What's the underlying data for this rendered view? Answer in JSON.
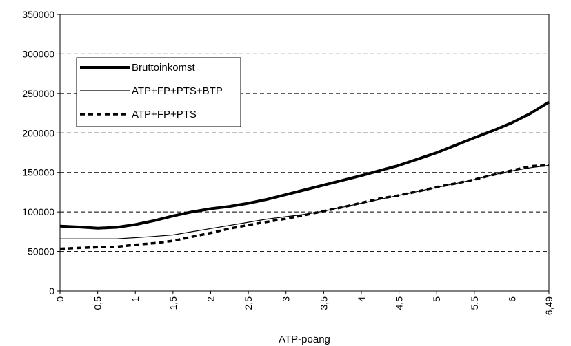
{
  "chart_data": {
    "type": "line",
    "title": "",
    "xlabel": "ATP-poäng",
    "ylabel": "",
    "xlim": [
      0,
      6.49
    ],
    "ylim": [
      0,
      350000
    ],
    "grid": "horizontal-dashed",
    "legend_position": "top-left",
    "x_ticks": [
      0,
      0.5,
      1,
      1.5,
      2,
      2.5,
      3,
      3.5,
      4,
      4.5,
      5,
      5.5,
      6,
      6.49
    ],
    "x_tick_labels": [
      "0",
      "0,5",
      "1",
      "1,5",
      "2",
      "2,5",
      "3",
      "3,5",
      "4",
      "4,5",
      "5",
      "5,5",
      "6",
      "6,49"
    ],
    "y_ticks": [
      0,
      50000,
      100000,
      150000,
      200000,
      250000,
      300000,
      350000
    ],
    "y_tick_labels": [
      "0",
      "50000",
      "100000",
      "150000",
      "200000",
      "250000",
      "300000",
      "350000"
    ],
    "x": [
      0,
      0.25,
      0.5,
      0.75,
      1,
      1.25,
      1.5,
      1.75,
      2,
      2.25,
      2.5,
      2.75,
      3,
      3.25,
      3.5,
      3.75,
      4,
      4.25,
      4.5,
      4.75,
      5,
      5.25,
      5.5,
      5.75,
      6,
      6.25,
      6.49
    ],
    "series": [
      {
        "name": "Bruttoinkomst",
        "style": "thick",
        "color": "#000000",
        "values": [
          82000,
          81000,
          79500,
          80500,
          84000,
          89000,
          95000,
          100000,
          104000,
          107000,
          111000,
          116000,
          122000,
          128000,
          134000,
          140000,
          146000,
          152500,
          159000,
          167000,
          175000,
          184500,
          194000,
          203000,
          213000,
          225000,
          239000
        ]
      },
      {
        "name": "ATP+FP+PTS+BTP",
        "style": "thin",
        "color": "#000000",
        "values": [
          66000,
          66000,
          66000,
          66000,
          67500,
          69000,
          71000,
          75000,
          79000,
          83000,
          87000,
          91000,
          94000,
          97000,
          101000,
          106000,
          111000,
          116000,
          121000,
          126000,
          131000,
          136000,
          141000,
          147000,
          152000,
          156000,
          159000
        ]
      },
      {
        "name": "ATP+FP+PTS",
        "style": "dashed",
        "color": "#000000",
        "values": [
          53500,
          54500,
          55500,
          56000,
          58500,
          60500,
          63500,
          68500,
          73500,
          79000,
          83500,
          87500,
          91500,
          96000,
          101000,
          106000,
          111500,
          117000,
          121000,
          126000,
          131500,
          136000,
          141000,
          147000,
          152500,
          158000,
          159000
        ]
      }
    ]
  }
}
